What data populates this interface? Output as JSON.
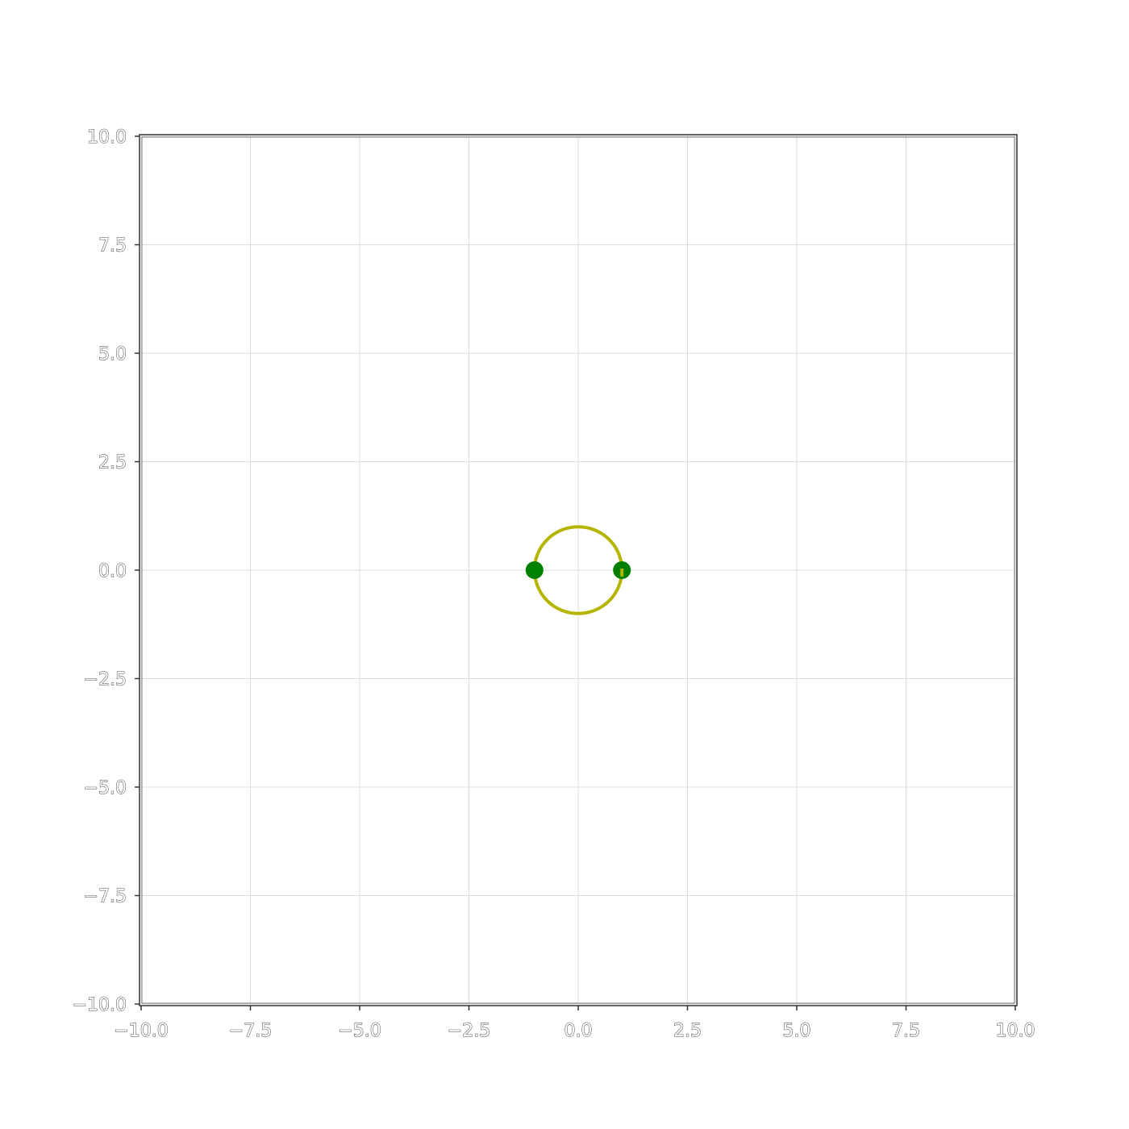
{
  "chart_data": {
    "type": "scatter",
    "title": "",
    "xlabel": "",
    "ylabel": "",
    "xlim": [
      -10,
      10
    ],
    "ylim": [
      -10,
      10
    ],
    "grid": true,
    "x_ticks": [
      "−10.0",
      "−7.5",
      "−5.0",
      "−2.5",
      "0.0",
      "2.5",
      "5.0",
      "7.5",
      "10.0"
    ],
    "y_ticks": [
      "−10.0",
      "−7.5",
      "−5.0",
      "−2.5",
      "0.0",
      "2.5",
      "5.0",
      "7.5",
      "10.0"
    ],
    "x_tick_values": [
      -10,
      -7.5,
      -5,
      -2.5,
      0,
      2.5,
      5,
      7.5,
      10
    ],
    "y_tick_values": [
      -10,
      -7.5,
      -5,
      -2.5,
      0,
      2.5,
      5,
      7.5,
      10
    ],
    "curve": {
      "shape": "circle",
      "center": [
        0,
        0
      ],
      "radius": 1,
      "color": "#b5b500"
    },
    "points": {
      "x": [
        -1,
        1
      ],
      "y": [
        0,
        0
      ],
      "color": "#008000"
    }
  }
}
